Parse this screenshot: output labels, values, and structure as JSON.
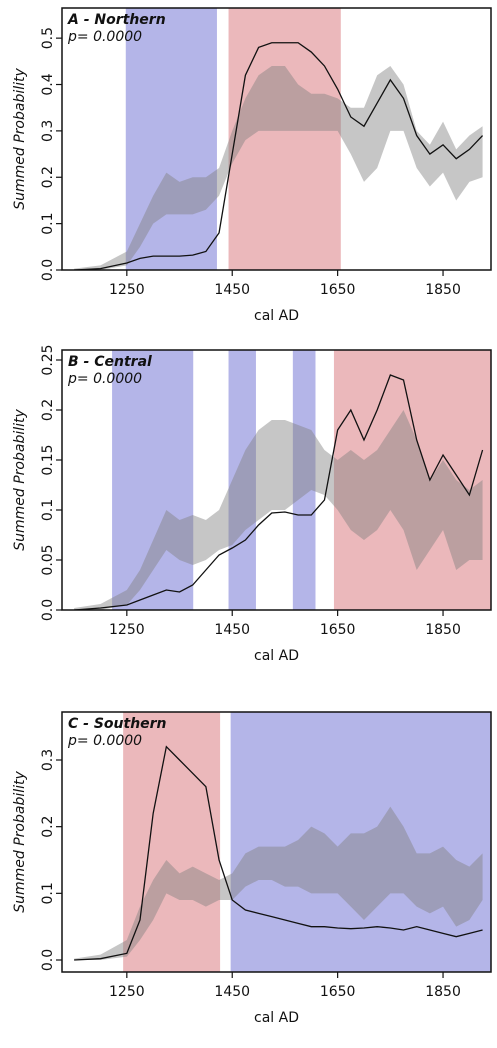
{
  "chart_data": [
    {
      "type": "line",
      "title": "A - Northern",
      "annotation": "p= 0.0000",
      "x_label": "cal AD",
      "y_label": "Summed Probability",
      "xlim": [
        1127,
        1941
      ],
      "ylim": [
        0,
        0.565
      ],
      "xticks": [
        1250,
        1450,
        1650,
        1850
      ],
      "yticks": [
        {
          "value": 0,
          "label": "0.0"
        },
        0.1,
        0.2,
        0.3,
        0.4,
        0.5
      ],
      "x": [
        1150,
        1200,
        1250,
        1275,
        1300,
        1325,
        1350,
        1375,
        1400,
        1425,
        1450,
        1475,
        1500,
        1525,
        1550,
        1575,
        1600,
        1625,
        1650,
        1675,
        1700,
        1725,
        1750,
        1775,
        1800,
        1825,
        1850,
        1875,
        1900,
        1925
      ],
      "regions": [
        {
          "start": 1248,
          "end": 1421,
          "color": "#b4b5e8"
        },
        {
          "start": 1443,
          "end": 1656,
          "color": "#ebb8bb"
        }
      ],
      "envelope": {
        "color": "#808080",
        "lower": [
          0,
          0,
          0.01,
          0.05,
          0.1,
          0.12,
          0.12,
          0.12,
          0.13,
          0.16,
          0.23,
          0.28,
          0.3,
          0.3,
          0.3,
          0.3,
          0.3,
          0.3,
          0.3,
          0.25,
          0.19,
          0.22,
          0.3,
          0.3,
          0.22,
          0.18,
          0.21,
          0.15,
          0.19,
          0.2
        ],
        "upper": [
          0.003,
          0.01,
          0.04,
          0.1,
          0.16,
          0.21,
          0.19,
          0.2,
          0.2,
          0.22,
          0.3,
          0.37,
          0.42,
          0.44,
          0.44,
          0.4,
          0.38,
          0.38,
          0.37,
          0.35,
          0.35,
          0.42,
          0.44,
          0.4,
          0.3,
          0.27,
          0.32,
          0.26,
          0.29,
          0.31
        ]
      },
      "line": {
        "color": "#111111",
        "values": [
          0,
          0.003,
          0.015,
          0.025,
          0.03,
          0.03,
          0.03,
          0.032,
          0.04,
          0.08,
          0.25,
          0.42,
          0.48,
          0.49,
          0.49,
          0.49,
          0.47,
          0.44,
          0.39,
          0.33,
          0.31,
          0.36,
          0.41,
          0.37,
          0.29,
          0.25,
          0.27,
          0.24,
          0.26,
          0.29
        ]
      }
    },
    {
      "type": "line",
      "title": "B - Central",
      "annotation": "p= 0.0000",
      "x_label": "cal AD",
      "y_label": "Summed Probability",
      "xlim": [
        1127,
        1941
      ],
      "ylim": [
        0,
        0.26
      ],
      "xticks": [
        1250,
        1450,
        1650,
        1850
      ],
      "yticks": [
        {
          "value": 0,
          "label": "0.0"
        },
        0.05,
        0.1,
        0.15,
        0.2,
        0.25
      ],
      "x": [
        1150,
        1200,
        1250,
        1275,
        1300,
        1325,
        1350,
        1375,
        1400,
        1425,
        1450,
        1475,
        1500,
        1525,
        1550,
        1575,
        1600,
        1625,
        1650,
        1675,
        1700,
        1725,
        1750,
        1775,
        1800,
        1825,
        1850,
        1875,
        1900,
        1925
      ],
      "regions": [
        {
          "start": 1222,
          "end": 1376,
          "color": "#b4b5e8"
        },
        {
          "start": 1443,
          "end": 1495,
          "color": "#b4b5e8"
        },
        {
          "start": 1565,
          "end": 1608,
          "color": "#b4b5e8"
        },
        {
          "start": 1643,
          "end": 1941,
          "color": "#ebb8bb"
        }
      ],
      "envelope": {
        "color": "#808080",
        "lower": [
          0,
          0,
          0.005,
          0.02,
          0.04,
          0.06,
          0.05,
          0.045,
          0.05,
          0.06,
          0.065,
          0.08,
          0.09,
          0.1,
          0.1,
          0.11,
          0.12,
          0.115,
          0.1,
          0.08,
          0.07,
          0.08,
          0.1,
          0.08,
          0.04,
          0.06,
          0.08,
          0.04,
          0.05,
          0.05
        ],
        "upper": [
          0.002,
          0.006,
          0.02,
          0.04,
          0.07,
          0.1,
          0.09,
          0.095,
          0.09,
          0.1,
          0.13,
          0.16,
          0.18,
          0.19,
          0.19,
          0.185,
          0.18,
          0.16,
          0.15,
          0.16,
          0.15,
          0.16,
          0.18,
          0.2,
          0.17,
          0.13,
          0.15,
          0.13,
          0.12,
          0.13
        ]
      },
      "line": {
        "color": "#111111",
        "values": [
          0,
          0.002,
          0.005,
          0.01,
          0.015,
          0.02,
          0.018,
          0.025,
          0.04,
          0.055,
          0.062,
          0.07,
          0.085,
          0.097,
          0.098,
          0.095,
          0.095,
          0.11,
          0.18,
          0.2,
          0.17,
          0.2,
          0.235,
          0.23,
          0.17,
          0.13,
          0.155,
          0.135,
          0.115,
          0.16
        ]
      }
    },
    {
      "type": "line",
      "title": "C - Southern",
      "annotation": "p= 0.0000",
      "x_label": "cal AD",
      "y_label": "Summed Probability",
      "xlim": [
        1127,
        1941
      ],
      "ylim": [
        -0.018,
        0.372
      ],
      "xticks": [
        1250,
        1450,
        1650,
        1850
      ],
      "yticks": [
        {
          "value": 0,
          "label": "0.0"
        },
        0.1,
        0.2,
        0.3
      ],
      "x": [
        1150,
        1200,
        1250,
        1275,
        1300,
        1325,
        1350,
        1375,
        1400,
        1425,
        1450,
        1475,
        1500,
        1525,
        1550,
        1575,
        1600,
        1625,
        1650,
        1675,
        1700,
        1725,
        1750,
        1775,
        1800,
        1825,
        1850,
        1875,
        1900,
        1925
      ],
      "regions": [
        {
          "start": 1243,
          "end": 1427,
          "color": "#ebb8bb"
        },
        {
          "start": 1447,
          "end": 1941,
          "color": "#b4b5e8"
        }
      ],
      "envelope": {
        "color": "#808080",
        "lower": [
          0,
          0,
          0.005,
          0.03,
          0.06,
          0.1,
          0.09,
          0.09,
          0.08,
          0.09,
          0.09,
          0.11,
          0.12,
          0.12,
          0.11,
          0.11,
          0.1,
          0.1,
          0.1,
          0.08,
          0.06,
          0.08,
          0.1,
          0.1,
          0.08,
          0.07,
          0.08,
          0.05,
          0.06,
          0.09
        ],
        "upper": [
          0.002,
          0.008,
          0.03,
          0.08,
          0.12,
          0.15,
          0.13,
          0.14,
          0.13,
          0.12,
          0.13,
          0.16,
          0.17,
          0.17,
          0.17,
          0.18,
          0.2,
          0.19,
          0.17,
          0.19,
          0.19,
          0.2,
          0.23,
          0.2,
          0.16,
          0.16,
          0.17,
          0.15,
          0.14,
          0.16
        ]
      },
      "line": {
        "color": "#111111",
        "values": [
          0,
          0.002,
          0.01,
          0.06,
          0.22,
          0.32,
          0.3,
          0.28,
          0.26,
          0.15,
          0.09,
          0.075,
          0.07,
          0.065,
          0.06,
          0.055,
          0.05,
          0.05,
          0.048,
          0.047,
          0.048,
          0.05,
          0.048,
          0.045,
          0.05,
          0.045,
          0.04,
          0.035,
          0.04,
          0.045
        ]
      }
    }
  ]
}
